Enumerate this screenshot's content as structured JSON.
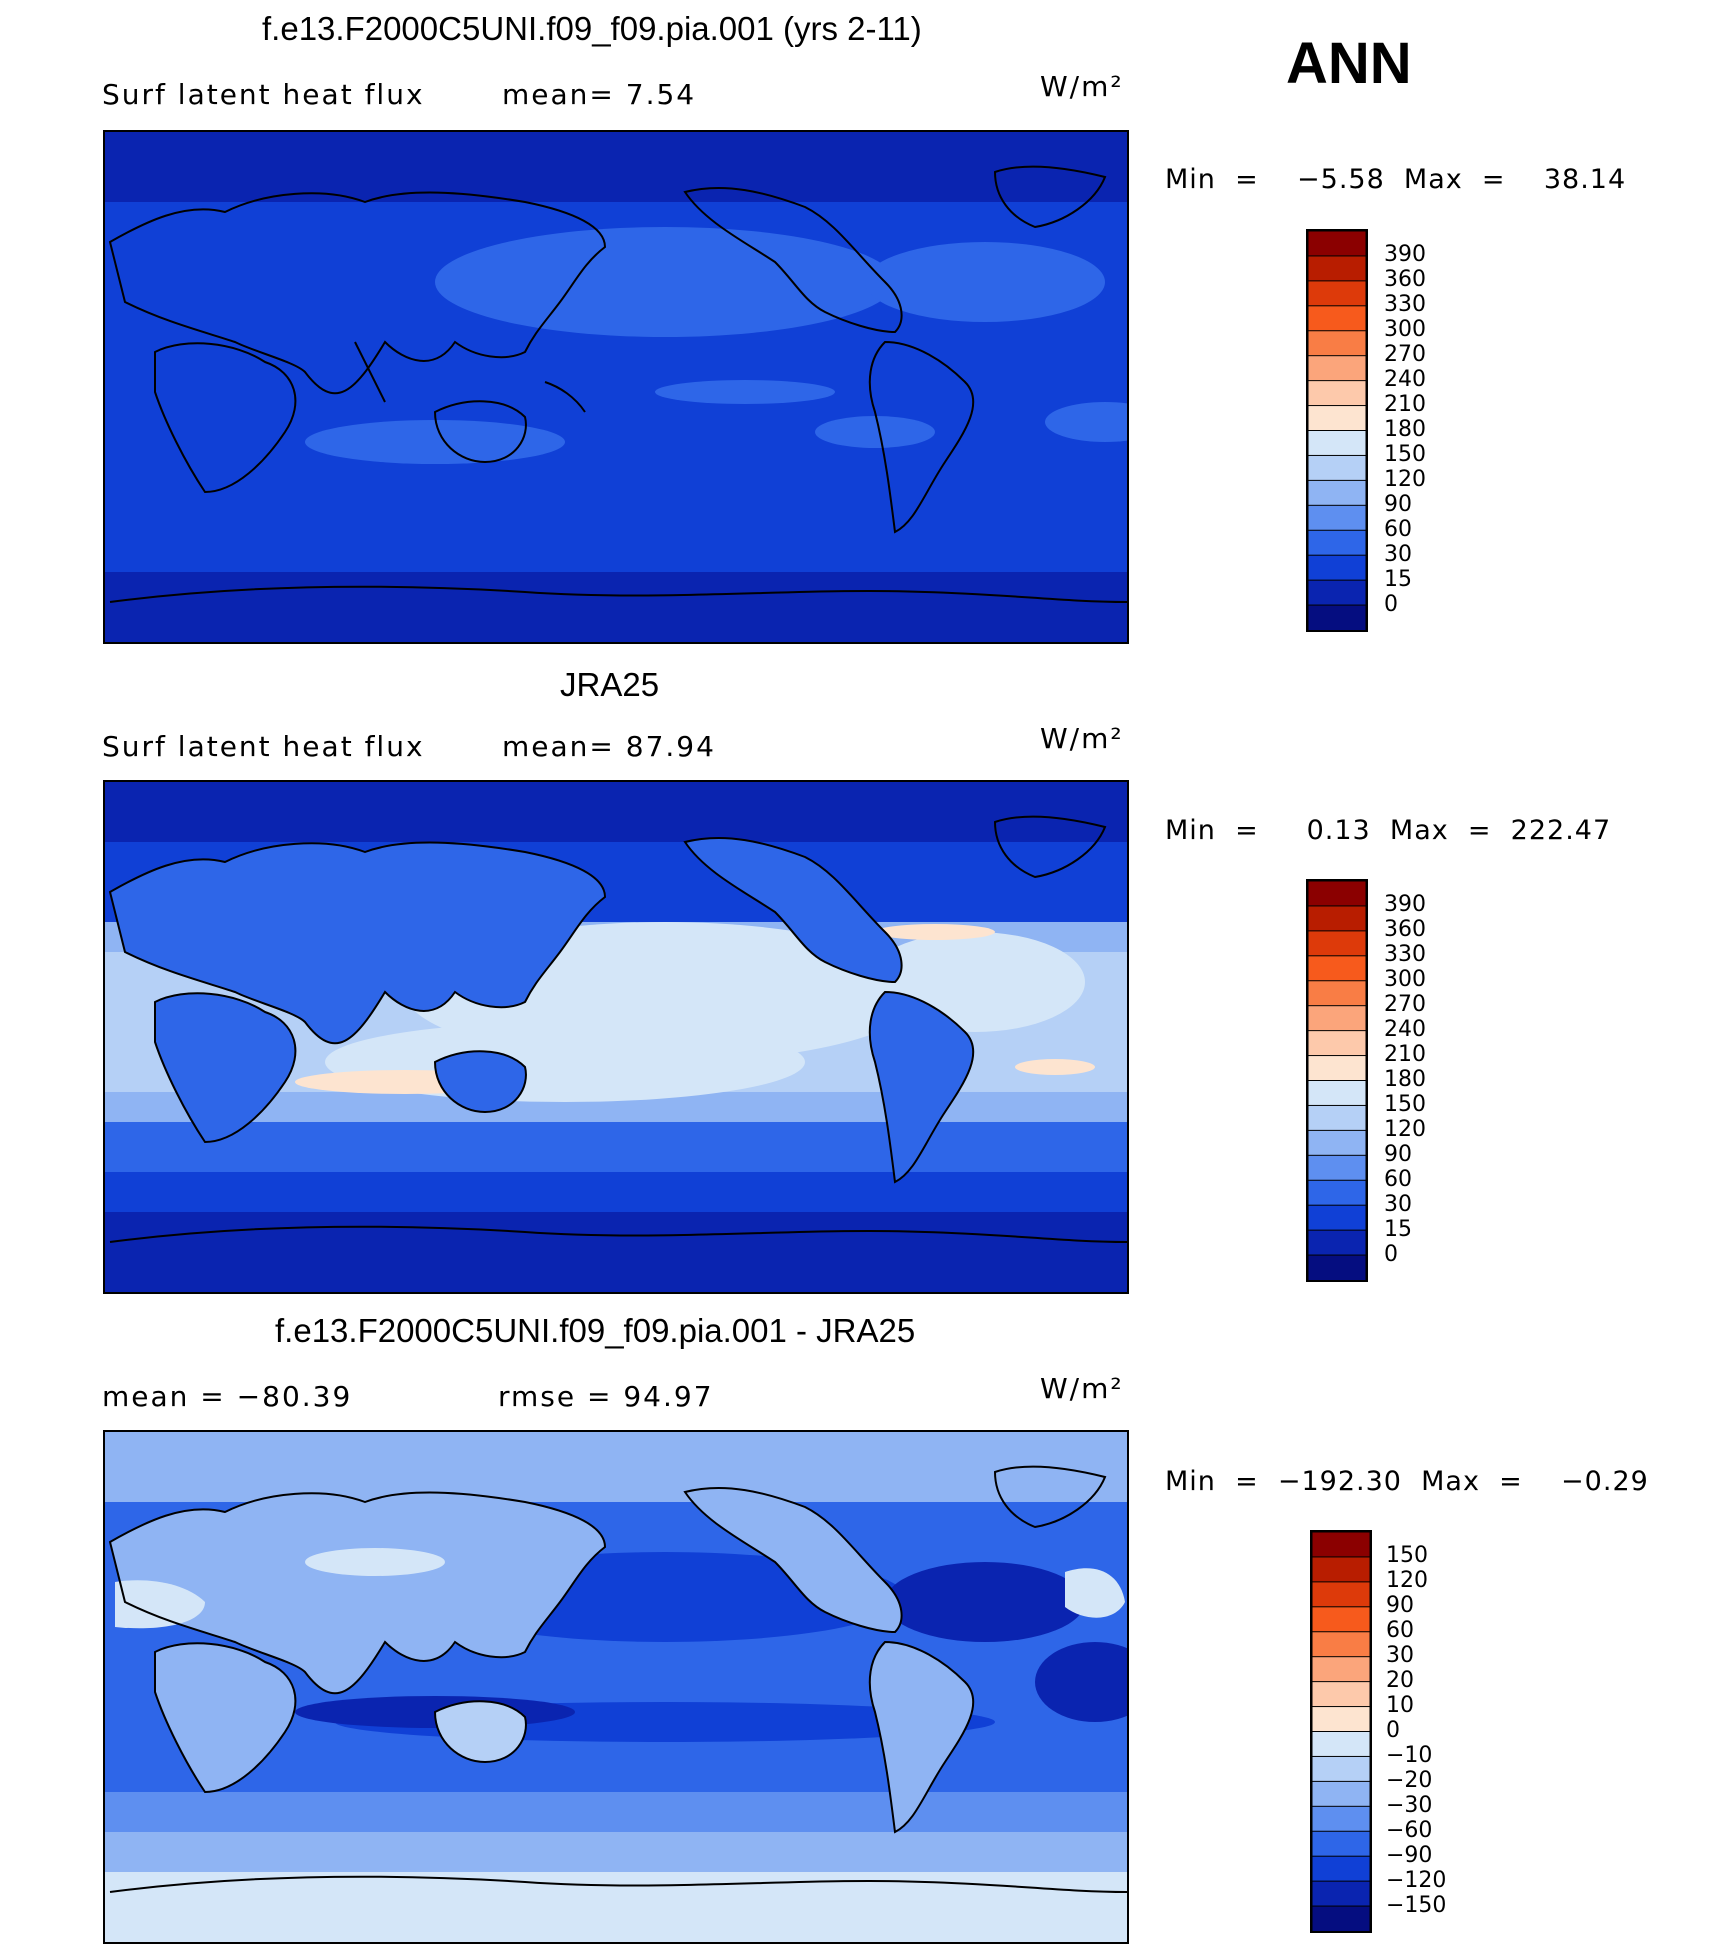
{
  "season": "ANN",
  "panels": [
    {
      "title": "f.e13.F2000C5UNI.f09_f09.pia.001 (yrs 2-11)",
      "left_text": "Surf  latent  heat  flux",
      "mid_text": "mean=    7.54",
      "units": "W/m²",
      "min_max": "Min  =    −5.58  Max  =    38.14",
      "min": -5.58,
      "max": 38.14,
      "mean": 7.54,
      "colorbar": {
        "levels": [
          "390",
          "360",
          "330",
          "300",
          "270",
          "240",
          "210",
          "180",
          "150",
          "120",
          "90",
          "60",
          "30",
          "15",
          "0"
        ],
        "colors": [
          "#8b0000",
          "#b81d00",
          "#dd3a0a",
          "#f75a1c",
          "#f97d45",
          "#fba57b",
          "#fdc9ab",
          "#fde4d0",
          "#d4e6f8",
          "#b5d0f6",
          "#8fb4f3",
          "#5e8ff0",
          "#2e66e8",
          "#1040d6",
          "#0a24b0",
          "#050d80"
        ]
      }
    },
    {
      "title": "JRA25",
      "left_text": "Surf  latent  heat  flux",
      "mid_text": "mean=   87.94",
      "units": "W/m²",
      "min_max": "Min  =     0.13  Max  =  222.47",
      "min": 0.13,
      "max": 222.47,
      "mean": 87.94,
      "colorbar": {
        "levels": [
          "390",
          "360",
          "330",
          "300",
          "270",
          "240",
          "210",
          "180",
          "150",
          "120",
          "90",
          "60",
          "30",
          "15",
          "0"
        ],
        "colors": [
          "#8b0000",
          "#b81d00",
          "#dd3a0a",
          "#f75a1c",
          "#f97d45",
          "#fba57b",
          "#fdc9ab",
          "#fde4d0",
          "#d4e6f8",
          "#b5d0f6",
          "#8fb4f3",
          "#5e8ff0",
          "#2e66e8",
          "#1040d6",
          "#0a24b0",
          "#050d80"
        ]
      }
    },
    {
      "title": "f.e13.F2000C5UNI.f09_f09.pia.001 - JRA25",
      "left_text": "mean  =  −80.39",
      "mid_text": "rmse  =    94.97",
      "units": "W/m²",
      "min_max": "Min  =  −192.30  Max  =    −0.29",
      "min": -192.3,
      "max": -0.29,
      "mean": -80.39,
      "rmse": 94.97,
      "colorbar": {
        "levels": [
          "150",
          "120",
          "90",
          "60",
          "30",
          "20",
          "10",
          "0",
          "−10",
          "−20",
          "−30",
          "−60",
          "−90",
          "−120",
          "−150"
        ],
        "colors": [
          "#8b0000",
          "#b81d00",
          "#dd3a0a",
          "#f75a1c",
          "#f97d45",
          "#fba57b",
          "#fdc9ab",
          "#fde4d0",
          "#d4e6f8",
          "#b5d0f6",
          "#8fb4f3",
          "#5e8ff0",
          "#2e66e8",
          "#1040d6",
          "#0a24b0",
          "#050d80"
        ]
      }
    }
  ]
}
